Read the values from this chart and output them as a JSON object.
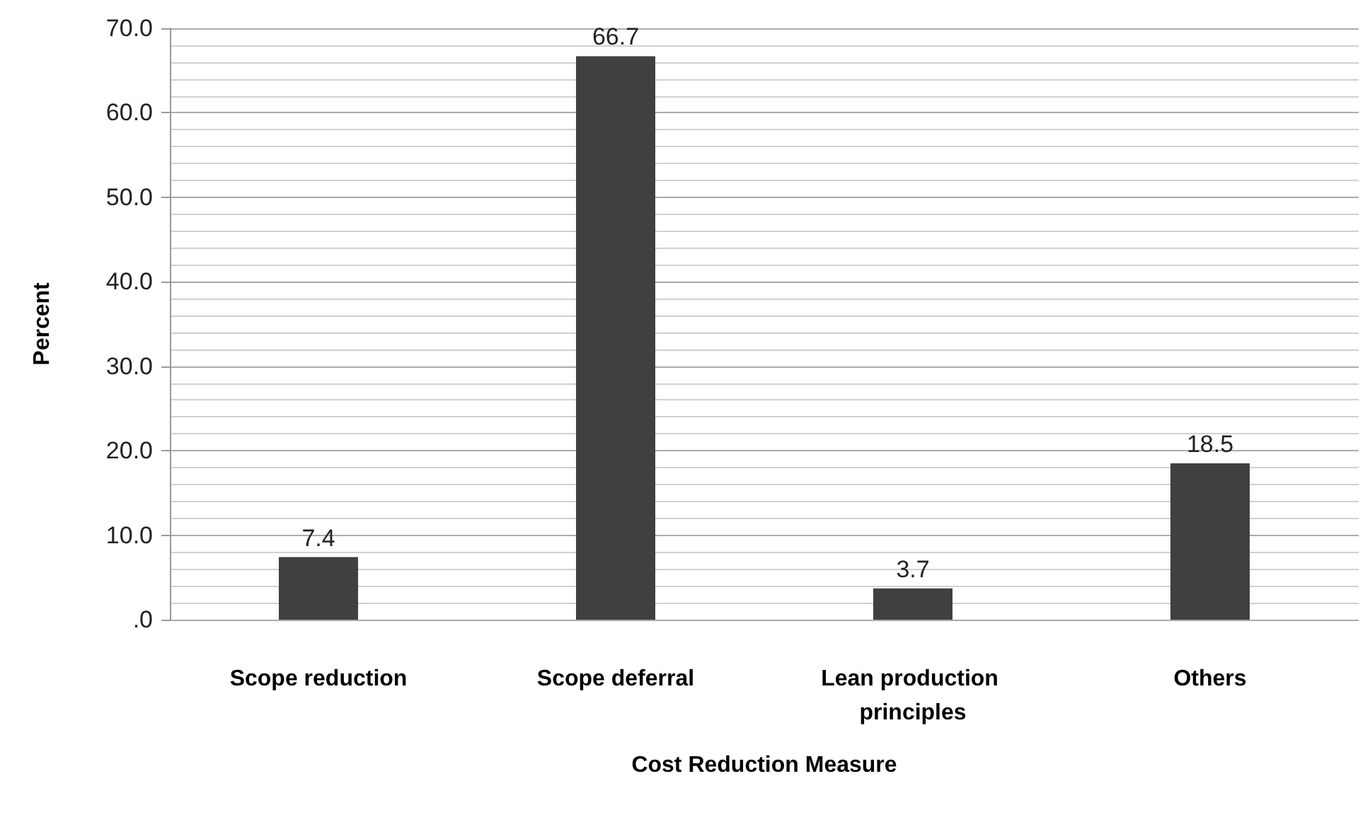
{
  "chart_data": {
    "type": "bar",
    "xlabel": "Cost Reduction Measure",
    "ylabel": "Percent",
    "categories": [
      "Scope reduction",
      "Scope deferral",
      "Lean production principles",
      "Others"
    ],
    "values": [
      7.4,
      66.7,
      3.7,
      18.5
    ],
    "color": "#404040",
    "data_labels": true,
    "grid": "y",
    "ylim": [
      0,
      70
    ],
    "yticks": [
      {
        "value": 0,
        "label": ".0"
      },
      {
        "value": 10,
        "label": "10.0"
      },
      {
        "value": 20,
        "label": "20.0"
      },
      {
        "value": 30,
        "label": "30.0"
      },
      {
        "value": 40,
        "label": "40.0"
      },
      {
        "value": 50,
        "label": "50.0"
      },
      {
        "value": 60,
        "label": "60.0"
      },
      {
        "value": 70,
        "label": "70.0"
      }
    ]
  }
}
